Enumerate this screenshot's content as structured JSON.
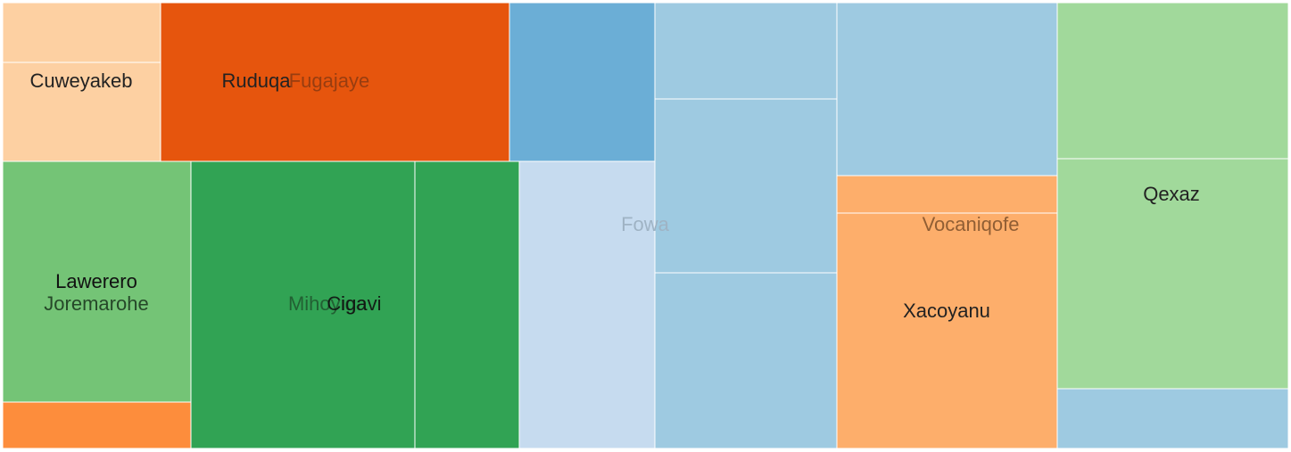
{
  "chart_data": {
    "type": "treemap",
    "labels": [
      {
        "text": "Cuweyakeb",
        "color": "#222222",
        "opacity": 1.0
      },
      {
        "text": "Ruduqa",
        "color": "#222222",
        "opacity": 1.0
      },
      {
        "text": "Fugajaye",
        "color": "#8a3a12",
        "opacity": 0.85
      },
      {
        "text": "Fowa",
        "color": "#9fb3c4",
        "opacity": 1.0
      },
      {
        "text": "Vocaniqofe",
        "color": "#8a5a32",
        "opacity": 0.95
      },
      {
        "text": "Qexaz",
        "color": "#222222",
        "opacity": 1.0
      },
      {
        "text": "Lawerero",
        "color": "#111111",
        "opacity": 1.0
      },
      {
        "text": "Joremarohe",
        "color": "#1d3a20",
        "opacity": 0.9
      },
      {
        "text": "Mihoyiga",
        "color": "#1d4a28",
        "opacity": 0.75
      },
      {
        "text": "Cigavi",
        "color": "#111111",
        "opacity": 0.9
      },
      {
        "text": "Xacoyanu",
        "color": "#222222",
        "opacity": 1.0
      }
    ],
    "cells": [
      {
        "color": "#fdd0a2",
        "value": 4
      },
      {
        "color": "#fdd0a2",
        "value": 10
      },
      {
        "color": "#e6550d",
        "value": 38
      },
      {
        "color": "#6baed6",
        "value": 16
      },
      {
        "color": "#9ecae1",
        "value": 11
      },
      {
        "color": "#9ecae1",
        "value": 22
      },
      {
        "color": "#9ecae1",
        "value": 22
      },
      {
        "color": "#9ecae1",
        "value": 26
      },
      {
        "color": "#fdae6b",
        "value": 5
      },
      {
        "color": "#fdae6b",
        "value": 34
      },
      {
        "color": "#a1d99b",
        "value": 25
      },
      {
        "color": "#a1d99b",
        "value": 35
      },
      {
        "color": "#9ecae1",
        "value": 9
      },
      {
        "color": "#74c476",
        "value": 30
      },
      {
        "color": "#fd8d3c",
        "value": 6
      },
      {
        "color": "#31a354",
        "value": 42
      },
      {
        "color": "#31a354",
        "value": 19
      },
      {
        "color": "#c6dbef",
        "value": 40
      }
    ]
  }
}
